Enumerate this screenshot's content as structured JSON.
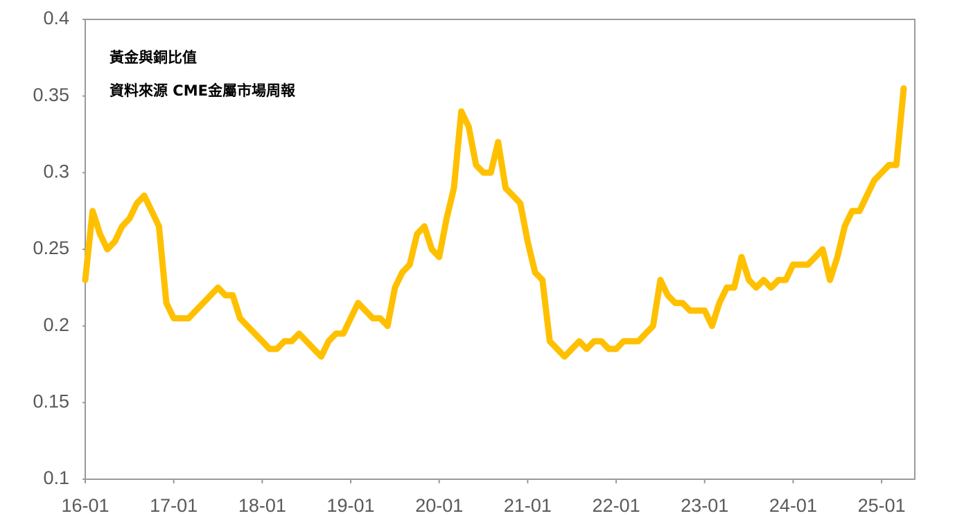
{
  "chart_data": {
    "type": "line",
    "title": "黃金與銅比值",
    "subtitle": "資料來源 CME金屬市場周報",
    "x": [
      "16-01",
      "16-02",
      "16-03",
      "16-04",
      "16-05",
      "16-06",
      "16-07",
      "16-08",
      "16-09",
      "16-10",
      "16-11",
      "16-12",
      "17-01",
      "17-02",
      "17-03",
      "17-04",
      "17-05",
      "17-06",
      "17-07",
      "17-08",
      "17-09",
      "17-10",
      "17-11",
      "17-12",
      "18-01",
      "18-02",
      "18-03",
      "18-04",
      "18-05",
      "18-06",
      "18-07",
      "18-08",
      "18-09",
      "18-10",
      "18-11",
      "18-12",
      "19-01",
      "19-02",
      "19-03",
      "19-04",
      "19-05",
      "19-06",
      "19-07",
      "19-08",
      "19-09",
      "19-10",
      "19-11",
      "19-12",
      "20-01",
      "20-02",
      "20-03",
      "20-04",
      "20-05",
      "20-06",
      "20-07",
      "20-08",
      "20-09",
      "20-10",
      "20-11",
      "20-12",
      "21-01",
      "21-02",
      "21-03",
      "21-04",
      "21-05",
      "21-06",
      "21-07",
      "21-08",
      "21-09",
      "21-10",
      "21-11",
      "21-12",
      "22-01",
      "22-02",
      "22-03",
      "22-04",
      "22-05",
      "22-06",
      "22-07",
      "22-08",
      "22-09",
      "22-10",
      "22-11",
      "22-12",
      "23-01",
      "23-02",
      "23-03",
      "23-04",
      "23-05",
      "23-06",
      "23-07",
      "23-08",
      "23-09",
      "23-10",
      "23-11",
      "23-12",
      "24-01",
      "24-02",
      "24-03",
      "24-04",
      "24-05",
      "24-06",
      "24-07",
      "24-08",
      "24-09",
      "24-10",
      "24-11",
      "24-12",
      "25-01",
      "25-02",
      "25-03",
      "25-04"
    ],
    "series": [
      {
        "name": "黃金與銅比值",
        "color": "#FFC000",
        "values": [
          0.23,
          0.275,
          0.26,
          0.25,
          0.255,
          0.265,
          0.27,
          0.28,
          0.285,
          0.275,
          0.265,
          0.215,
          0.205,
          0.205,
          0.205,
          0.21,
          0.215,
          0.22,
          0.225,
          0.22,
          0.22,
          0.205,
          0.2,
          0.195,
          0.19,
          0.185,
          0.185,
          0.19,
          0.19,
          0.195,
          0.19,
          0.185,
          0.18,
          0.19,
          0.195,
          0.195,
          0.205,
          0.215,
          0.21,
          0.205,
          0.205,
          0.2,
          0.225,
          0.235,
          0.24,
          0.26,
          0.265,
          0.25,
          0.245,
          0.27,
          0.29,
          0.34,
          0.33,
          0.305,
          0.3,
          0.3,
          0.32,
          0.29,
          0.285,
          0.28,
          0.255,
          0.235,
          0.23,
          0.19,
          0.185,
          0.18,
          0.185,
          0.19,
          0.185,
          0.19,
          0.19,
          0.185,
          0.185,
          0.19,
          0.19,
          0.19,
          0.195,
          0.2,
          0.23,
          0.22,
          0.215,
          0.215,
          0.21,
          0.21,
          0.21,
          0.2,
          0.215,
          0.225,
          0.225,
          0.245,
          0.23,
          0.225,
          0.23,
          0.225,
          0.23,
          0.23,
          0.24,
          0.24,
          0.24,
          0.245,
          0.25,
          0.23,
          0.245,
          0.265,
          0.275,
          0.275,
          0.285,
          0.295,
          0.3,
          0.305,
          0.305,
          0.355
        ]
      }
    ],
    "xticks": [
      "16-01",
      "17-01",
      "18-01",
      "19-01",
      "20-01",
      "21-01",
      "22-01",
      "23-01",
      "24-01",
      "25-01"
    ],
    "ylim": [
      0.1,
      0.4
    ],
    "yticks": [
      0.1,
      0.15,
      0.2,
      0.25,
      0.3,
      0.35,
      0.4
    ]
  }
}
